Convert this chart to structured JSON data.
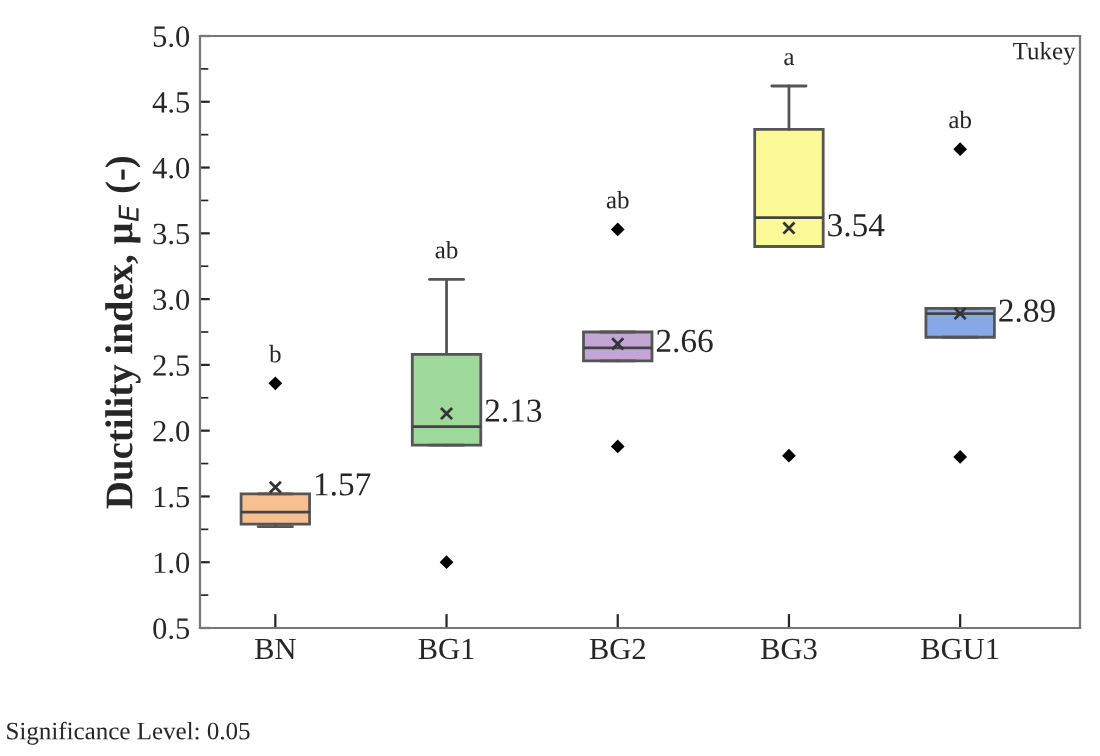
{
  "chart_data": {
    "type": "box",
    "ylabel": "Ductility index, μ$_{E}$ (-)",
    "categories": [
      "BN",
      "BG1",
      "BG2",
      "BG3",
      "BGU1"
    ],
    "colors": [
      "#f9c08f",
      "#9ed89b",
      "#c3a6d6",
      "#fbfa96",
      "#86a8e6"
    ],
    "boxes": [
      {
        "low": 1.27,
        "q1": 1.29,
        "median": 1.38,
        "q3": 1.52,
        "high": 1.52,
        "mean": 1.57,
        "outliers": [
          2.36
        ]
      },
      {
        "low": 1.89,
        "q1": 1.89,
        "median": 2.03,
        "q3": 2.58,
        "high": 3.15,
        "mean": 2.13,
        "outliers": [
          1.0
        ]
      },
      {
        "low": 2.53,
        "q1": 2.53,
        "median": 2.63,
        "q3": 2.75,
        "high": 2.75,
        "mean": 2.66,
        "outliers": [
          3.53,
          1.88
        ]
      },
      {
        "low": 3.4,
        "q1": 3.4,
        "median": 3.62,
        "q3": 4.29,
        "high": 4.62,
        "mean": 3.54,
        "outliers": [
          1.81
        ]
      },
      {
        "low": 2.71,
        "q1": 2.71,
        "median": 2.89,
        "q3": 2.93,
        "high": 2.93,
        "mean": 2.89,
        "outliers": [
          4.14,
          1.8
        ]
      }
    ],
    "ylim": [
      0.5,
      5.0
    ],
    "yticks": [
      {
        "value": 0.5,
        "label": "0.5"
      },
      {
        "value": 1.0,
        "label": "1.0"
      },
      {
        "value": 1.5,
        "label": "1.5"
      },
      {
        "value": 2.0,
        "label": "2.0"
      },
      {
        "value": 2.5,
        "label": "2.5"
      },
      {
        "value": 3.0,
        "label": "3.0"
      },
      {
        "value": 3.5,
        "label": "3.5"
      },
      {
        "value": 4.0,
        "label": "4.0"
      },
      {
        "value": 4.5,
        "label": "4.5"
      },
      {
        "value": 5.0,
        "label": "5.0"
      }
    ],
    "annotations": [
      "1.57",
      "2.13",
      "2.66",
      "3.54",
      "2.89",
      "b",
      "ab",
      "ab",
      "a",
      "ab",
      "Tukey",
      "Significance Level: 0.05"
    ],
    "grid": false,
    "legend": false
  }
}
